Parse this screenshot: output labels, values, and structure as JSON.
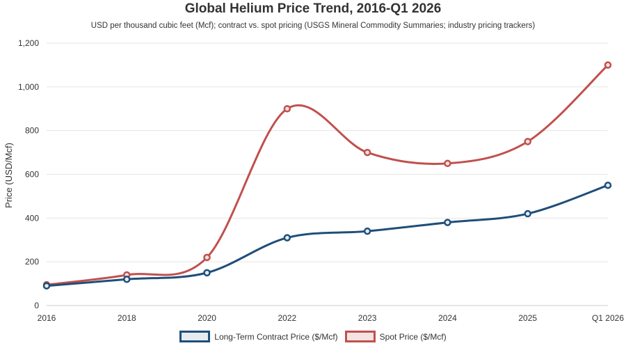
{
  "chart_data": {
    "type": "line",
    "title": "Global Helium Price Trend, 2016-Q1 2026",
    "subtitle": "USD per thousand cubic feet (Mcf); contract vs. spot pricing (USGS Mineral Commodity Summaries; industry pricing trackers)",
    "xlabel": "",
    "ylabel": "Price (USD/Mcf)",
    "categories": [
      "2016",
      "2018",
      "2020",
      "2022",
      "2023",
      "2024",
      "2025",
      "Q1 2026"
    ],
    "ylim": [
      0,
      1200
    ],
    "yticks": [
      0,
      200,
      400,
      600,
      800,
      1000,
      1200
    ],
    "ytick_labels": [
      "0",
      "200",
      "400",
      "600",
      "800",
      "1,000",
      "1,200"
    ],
    "grid": true,
    "legend_position": "bottom",
    "series": [
      {
        "name": "Long-Term Contract Price ($/Mcf)",
        "color": "#1f4e79",
        "fill": "#e6ebf1",
        "values": [
          90,
          120,
          150,
          310,
          340,
          380,
          420,
          550
        ]
      },
      {
        "name": "Spot Price ($/Mcf)",
        "color": "#c0504d",
        "fill": "#f5e3e3",
        "values": [
          95,
          140,
          220,
          900,
          700,
          650,
          750,
          1100
        ]
      }
    ]
  }
}
